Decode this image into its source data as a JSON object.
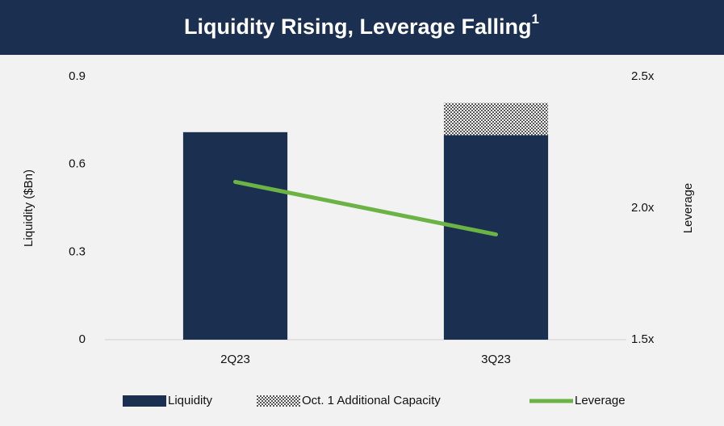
{
  "chart_data": {
    "type": "bar",
    "title": "Liquidity Rising, Leverage Falling",
    "title_note": "1",
    "categories": [
      "2Q23",
      "3Q23"
    ],
    "stacked": true,
    "series": [
      {
        "name": "Liquidity",
        "color": "#1b3050",
        "values": [
          0.71,
          0.7
        ]
      },
      {
        "name": "Oct. 1 Additional Capacity",
        "color": "#8c8c8c",
        "pattern": "checker",
        "values": [
          null,
          0.11
        ]
      },
      {
        "name": "Leverage",
        "color": "#6ab344",
        "type": "line",
        "axis": "y2",
        "values": [
          2.1,
          1.9
        ]
      }
    ],
    "ylabel": "Liquidity ($Bn)",
    "y2label": "Leverage",
    "ylim": [
      0,
      0.9
    ],
    "yticks": [
      0,
      0.3,
      0.6,
      0.9
    ],
    "y2lim": [
      1.5,
      2.5
    ],
    "y2ticks": [
      {
        "value": 1.5,
        "label": "1.5x"
      },
      {
        "value": 2.0,
        "label": "2.0x"
      },
      {
        "value": 2.5,
        "label": "2.5x"
      }
    ],
    "grid": false,
    "legend": "bottom"
  }
}
